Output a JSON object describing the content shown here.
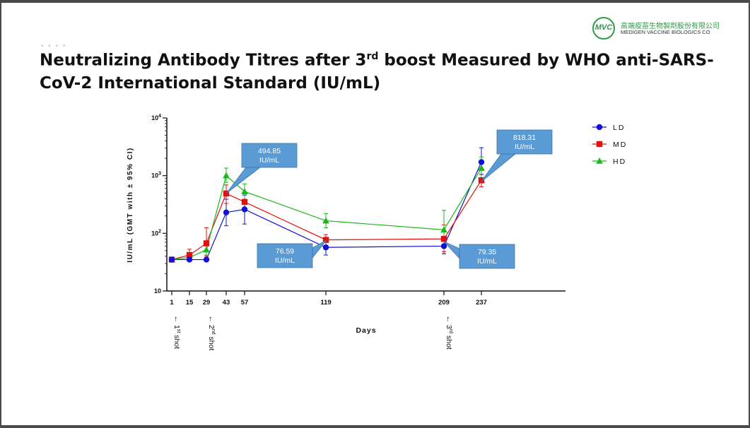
{
  "logo": {
    "mark": "MVC",
    "name_cn": "高端疫苗生物製劑股份有限公司",
    "name_en": "MEDIGEN VACCINE BIOLOGICS CO"
  },
  "title": {
    "main": "Neutralizing Antibody Titres after 3",
    "sup": "rd",
    "rest": " boost Measured by WHO anti-SARS-CoV-2 International Standard (IU/mL)"
  },
  "decor": {
    "dots": "• • • •"
  },
  "chart_data": {
    "type": "line",
    "title": "",
    "xlabel": "Days",
    "ylabel": "IU/mL (GMT with ± 95% CI)",
    "yscale": "log",
    "ylim": [
      10,
      10000
    ],
    "y_ticks": [
      {
        "value": 10,
        "base": "10",
        "exp": ""
      },
      {
        "value": 100,
        "base": "10",
        "exp": "2"
      },
      {
        "value": 1000,
        "base": "10",
        "exp": "3"
      },
      {
        "value": 10000,
        "base": "10",
        "exp": "4"
      }
    ],
    "x_ticks": [
      "1",
      "15",
      "29",
      "43",
      "57",
      "119",
      "209",
      "237"
    ],
    "x_tick_days": [
      1,
      15,
      29,
      43,
      57,
      119,
      209,
      237
    ],
    "series": [
      {
        "name": "LD",
        "color": "#1010d8",
        "marker": "circle",
        "x": [
          1,
          15,
          29,
          43,
          57,
          119,
          209,
          237
        ],
        "y": [
          35,
          35,
          35,
          230,
          260,
          57,
          60,
          1720
        ],
        "ci_low": [
          null,
          null,
          null,
          135,
          145,
          42,
          44,
          1050
        ],
        "ci_high": [
          null,
          null,
          null,
          390,
          460,
          75,
          80,
          3050
        ]
      },
      {
        "name": "MD",
        "color": "#e01010",
        "marker": "square",
        "x": [
          1,
          15,
          29,
          43,
          57,
          119,
          209,
          237
        ],
        "y": [
          35,
          42,
          67,
          490,
          350,
          77,
          80,
          830
        ],
        "ci_low": [
          null,
          33,
          40,
          330,
          240,
          62,
          48,
          640
        ],
        "ci_high": [
          null,
          53,
          125,
          690,
          510,
          95,
          140,
          1040
        ]
      },
      {
        "name": "HD",
        "color": "#18b818",
        "marker": "triangle",
        "x": [
          1,
          15,
          29,
          43,
          57,
          119,
          209,
          237
        ],
        "y": [
          35,
          38,
          52,
          1000,
          530,
          165,
          115,
          1350
        ],
        "ci_low": [
          null,
          null,
          42,
          760,
          390,
          125,
          55,
          900
        ],
        "ci_high": [
          null,
          null,
          65,
          1350,
          720,
          220,
          250,
          2100
        ]
      }
    ],
    "legend_position": "right",
    "annotations": [
      {
        "text": "494.85\nIU/mL",
        "x": 43,
        "y": 494.85,
        "box": "upper-right"
      },
      {
        "text": "76.59\nIU/mL",
        "x": 119,
        "y": 76.59,
        "box": "lower-left"
      },
      {
        "text": "79.35\nIU/mL",
        "x": 209,
        "y": 79.35,
        "box": "lower-right"
      },
      {
        "text": "818.31\nIU/mL",
        "x": 237,
        "y": 818.31,
        "box": "upper-right"
      }
    ],
    "shots": [
      {
        "day": 1,
        "num": "1",
        "sup": "st",
        "word": "shot"
      },
      {
        "day": 29,
        "num": "2",
        "sup": "nd",
        "word": "shot"
      },
      {
        "day": 209,
        "num": "3",
        "sup": "rd",
        "word": "shot"
      }
    ],
    "arrow_glyph": "←"
  }
}
